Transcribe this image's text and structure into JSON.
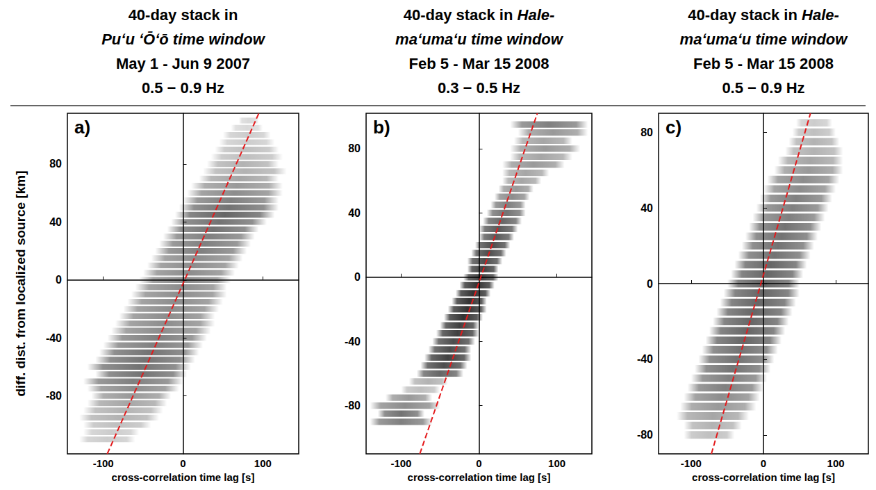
{
  "chart_data": [
    {
      "type": "density",
      "label": "a)",
      "title": [
        "40-day stack in",
        "Puʻu ʻŌʻō time window",
        "May 1 - Jun 9 2007",
        "0.5 − 0.9 Hz"
      ],
      "xlabel": "cross-correlation time lag [s]",
      "ylabel": "diff. dist. from localized source [km]",
      "xlim": [
        -145,
        145
      ],
      "xticks": [
        -100,
        0,
        100
      ],
      "ylim": [
        -120,
        115
      ],
      "yticks": [
        -80,
        -40,
        0,
        40,
        80
      ],
      "grid": false,
      "series": [
        {
          "type": "band",
          "color": "#000000",
          "values": [
            [
              -110,
              -130,
              -60,
              0.2
            ],
            [
              -105,
              -125,
              -55,
              0.2
            ],
            [
              -100,
              -125,
              -40,
              0.25
            ],
            [
              -95,
              -130,
              -30,
              0.3
            ],
            [
              -90,
              -125,
              -25,
              0.3
            ],
            [
              -85,
              -120,
              -20,
              0.35
            ],
            [
              -80,
              -115,
              -15,
              0.4
            ],
            [
              -75,
              -120,
              -5,
              0.45
            ],
            [
              -70,
              -125,
              0,
              0.5
            ],
            [
              -65,
              -110,
              5,
              0.55
            ],
            [
              -60,
              -120,
              10,
              0.55
            ],
            [
              -55,
              -110,
              15,
              0.55
            ],
            [
              -50,
              -105,
              20,
              0.55
            ],
            [
              -45,
              -100,
              25,
              0.5
            ],
            [
              -40,
              -95,
              30,
              0.5
            ],
            [
              -35,
              -90,
              35,
              0.45
            ],
            [
              -30,
              -85,
              40,
              0.45
            ],
            [
              -25,
              -80,
              40,
              0.45
            ],
            [
              -20,
              -75,
              45,
              0.45
            ],
            [
              -15,
              -70,
              50,
              0.45
            ],
            [
              -10,
              -65,
              55,
              0.45
            ],
            [
              -5,
              -60,
              55,
              0.45
            ],
            [
              0,
              -55,
              60,
              0.45
            ],
            [
              5,
              -50,
              65,
              0.45
            ],
            [
              10,
              -45,
              70,
              0.45
            ],
            [
              15,
              -40,
              75,
              0.45
            ],
            [
              20,
              -35,
              80,
              0.5
            ],
            [
              25,
              -30,
              85,
              0.5
            ],
            [
              30,
              -25,
              90,
              0.5
            ],
            [
              35,
              -20,
              95,
              0.55
            ],
            [
              40,
              -15,
              105,
              0.55
            ],
            [
              45,
              -10,
              115,
              0.6
            ],
            [
              50,
              -5,
              120,
              0.55
            ],
            [
              55,
              0,
              120,
              0.5
            ],
            [
              60,
              5,
              125,
              0.45
            ],
            [
              65,
              10,
              125,
              0.4
            ],
            [
              70,
              20,
              120,
              0.35
            ],
            [
              75,
              25,
              130,
              0.3
            ],
            [
              80,
              30,
              120,
              0.3
            ],
            [
              85,
              35,
              125,
              0.25
            ],
            [
              90,
              40,
              120,
              0.25
            ],
            [
              95,
              45,
              115,
              0.2
            ],
            [
              100,
              50,
              110,
              0.2
            ],
            [
              105,
              60,
              100,
              0.15
            ],
            [
              110,
              70,
              95,
              0.15
            ]
          ]
        },
        {
          "type": "line",
          "color": "#e41a1c",
          "line_style": "dashed",
          "values": [
            [
              -95,
              -120
            ],
            [
              95,
              115
            ]
          ]
        }
      ]
    },
    {
      "type": "density",
      "label": "b)",
      "title": [
        "40-day stack in Hale-",
        "maʻumaʻu time window",
        "Feb 5 - Mar 15 2008",
        "0.3 − 0.5 Hz"
      ],
      "xlabel": "cross-correlation time lag [s]",
      "xlim": [
        -145,
        145
      ],
      "xticks": [
        -100,
        0,
        100
      ],
      "ylim": [
        -110,
        102
      ],
      "yticks": [
        -80,
        -40,
        0,
        40,
        80
      ],
      "grid": false,
      "series": [
        {
          "type": "band",
          "color": "#000000",
          "values": [
            [
              -90,
              -140,
              -60,
              0.5
            ],
            [
              -85,
              -130,
              -70,
              0.55
            ],
            [
              -80,
              -140,
              -50,
              0.45
            ],
            [
              -75,
              -120,
              -60,
              0.4
            ],
            [
              -70,
              -100,
              -50,
              0.25
            ],
            [
              -65,
              -90,
              -40,
              0.3
            ],
            [
              -60,
              -80,
              -20,
              0.6
            ],
            [
              -55,
              -75,
              -15,
              0.7
            ],
            [
              -50,
              -70,
              -10,
              0.75
            ],
            [
              -45,
              -65,
              -10,
              0.7
            ],
            [
              -40,
              -60,
              -5,
              0.7
            ],
            [
              -35,
              -55,
              0,
              0.75
            ],
            [
              -30,
              -50,
              0,
              0.75
            ],
            [
              -25,
              -45,
              5,
              0.8
            ],
            [
              -20,
              -40,
              10,
              0.8
            ],
            [
              -15,
              -35,
              10,
              0.8
            ],
            [
              -10,
              -30,
              15,
              0.8
            ],
            [
              -5,
              -25,
              20,
              0.8
            ],
            [
              0,
              -20,
              25,
              0.75
            ],
            [
              5,
              -15,
              25,
              0.75
            ],
            [
              10,
              -15,
              30,
              0.7
            ],
            [
              15,
              -10,
              35,
              0.7
            ],
            [
              20,
              -5,
              40,
              0.7
            ],
            [
              25,
              0,
              45,
              0.65
            ],
            [
              30,
              0,
              50,
              0.65
            ],
            [
              35,
              5,
              55,
              0.6
            ],
            [
              40,
              10,
              60,
              0.55
            ],
            [
              45,
              15,
              60,
              0.5
            ],
            [
              50,
              20,
              65,
              0.45
            ],
            [
              55,
              25,
              70,
              0.4
            ],
            [
              60,
              30,
              80,
              0.35
            ],
            [
              65,
              30,
              90,
              0.35
            ],
            [
              70,
              30,
              110,
              0.4
            ],
            [
              75,
              40,
              120,
              0.35
            ],
            [
              80,
              40,
              130,
              0.4
            ],
            [
              85,
              45,
              120,
              0.35
            ],
            [
              90,
              50,
              140,
              0.4
            ],
            [
              95,
              40,
              140,
              0.5
            ]
          ]
        },
        {
          "type": "line",
          "color": "#e41a1c",
          "line_style": "dashed",
          "values": [
            [
              -76,
              -110
            ],
            [
              75,
              102
            ]
          ]
        }
      ]
    },
    {
      "type": "density",
      "label": "c)",
      "title": [
        "40-day stack in Hale-",
        "maʻumaʻu time window",
        "Feb 5 - Mar 15 2008",
        "0.5 − 0.9 Hz"
      ],
      "xlabel": "cross-correlation time lag [s]",
      "xlim": [
        -145,
        145
      ],
      "xticks": [
        -100,
        0,
        100
      ],
      "ylim": [
        -90,
        90
      ],
      "yticks": [
        -80,
        -40,
        0,
        40,
        80
      ],
      "grid": false,
      "series": [
        {
          "type": "band",
          "color": "#000000",
          "values": [
            [
              -80,
              -110,
              -40,
              0.25
            ],
            [
              -75,
              -110,
              -30,
              0.3
            ],
            [
              -70,
              -120,
              -20,
              0.35
            ],
            [
              -65,
              -115,
              -10,
              0.4
            ],
            [
              -60,
              -110,
              -5,
              0.45
            ],
            [
              -55,
              -105,
              0,
              0.5
            ],
            [
              -50,
              -100,
              5,
              0.5
            ],
            [
              -45,
              -95,
              10,
              0.55
            ],
            [
              -40,
              -90,
              15,
              0.55
            ],
            [
              -35,
              -85,
              20,
              0.55
            ],
            [
              -30,
              -80,
              25,
              0.6
            ],
            [
              -25,
              -75,
              30,
              0.6
            ],
            [
              -20,
              -70,
              35,
              0.6
            ],
            [
              -15,
              -65,
              40,
              0.6
            ],
            [
              -10,
              -60,
              45,
              0.6
            ],
            [
              -5,
              -55,
              50,
              0.6
            ],
            [
              0,
              -50,
              50,
              0.6
            ],
            [
              5,
              -45,
              55,
              0.6
            ],
            [
              10,
              -40,
              60,
              0.6
            ],
            [
              15,
              -35,
              65,
              0.55
            ],
            [
              20,
              -30,
              70,
              0.55
            ],
            [
              25,
              -25,
              75,
              0.55
            ],
            [
              30,
              -20,
              80,
              0.55
            ],
            [
              35,
              -15,
              85,
              0.5
            ],
            [
              40,
              -10,
              90,
              0.5
            ],
            [
              45,
              -5,
              95,
              0.5
            ],
            [
              50,
              0,
              100,
              0.45
            ],
            [
              55,
              5,
              105,
              0.45
            ],
            [
              60,
              15,
              110,
              0.4
            ],
            [
              65,
              20,
              110,
              0.35
            ],
            [
              70,
              30,
              110,
              0.3
            ],
            [
              75,
              35,
              105,
              0.3
            ],
            [
              80,
              40,
              100,
              0.25
            ],
            [
              85,
              45,
              95,
              0.2
            ]
          ]
        },
        {
          "type": "line",
          "color": "#e41a1c",
          "line_style": "dashed",
          "values": [
            [
              -72,
              -90
            ],
            [
              65,
              90
            ]
          ]
        }
      ]
    }
  ]
}
